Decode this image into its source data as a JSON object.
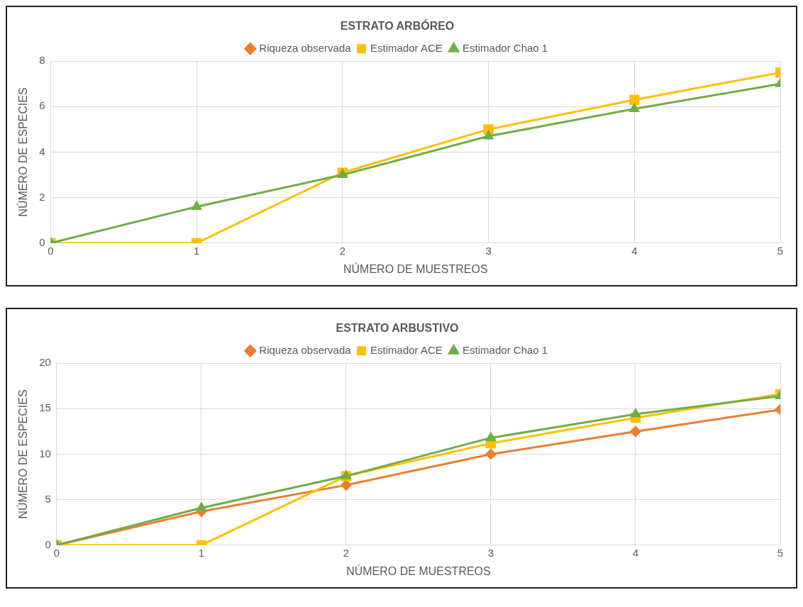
{
  "chart_data": [
    {
      "type": "line",
      "title": "ESTRATO ARBÓREO",
      "xlabel": "NÚMERO DE MUESTREOS",
      "ylabel": "NÚMERO DE ESPECIES",
      "x": [
        0,
        1,
        2,
        3,
        4,
        5
      ],
      "xlim": [
        0,
        5
      ],
      "xticks": [
        0,
        1,
        2,
        3,
        4,
        5
      ],
      "ylim": [
        0,
        8
      ],
      "yticks": [
        0,
        2,
        4,
        6,
        8
      ],
      "grid": true,
      "legend": "top",
      "line_style": "solid",
      "series": [
        {
          "name": "Riqueza observada",
          "color": "#ed7d31",
          "marker": "diamond",
          "values": [
            null,
            null,
            null,
            null,
            null,
            null
          ]
        },
        {
          "name": "Estimador ACE",
          "color": "#ffc000",
          "marker": "square",
          "values": [
            0,
            0,
            3.1,
            5,
            6.3,
            7.5
          ]
        },
        {
          "name": "Estimador Chao 1",
          "color": "#70ad47",
          "marker": "triangle",
          "values": [
            0,
            1.6,
            3,
            4.7,
            5.9,
            7
          ]
        }
      ]
    },
    {
      "type": "line",
      "title": "ESTRATO ARBUSTIVO",
      "xlabel": "NÚMERO DE MUESTREOS",
      "ylabel": "NÚMERO DE ESPECIES",
      "x": [
        0,
        1,
        2,
        3,
        4,
        5
      ],
      "xlim": [
        0,
        5
      ],
      "xticks": [
        0,
        1,
        2,
        3,
        4,
        5
      ],
      "ylim": [
        0,
        20
      ],
      "yticks": [
        0,
        5,
        10,
        15,
        20
      ],
      "grid": true,
      "legend": "top",
      "line_style": "solid",
      "series": [
        {
          "name": "Riqueza observada",
          "color": "#ed7d31",
          "marker": "diamond",
          "values": [
            0,
            3.7,
            6.6,
            10,
            12.5,
            14.9
          ]
        },
        {
          "name": "Estimador ACE",
          "color": "#ffc000",
          "marker": "square",
          "values": [
            0,
            0,
            7.6,
            11.2,
            14,
            16.6
          ]
        },
        {
          "name": "Estimador Chao 1",
          "color": "#70ad47",
          "marker": "triangle",
          "values": [
            0,
            4.1,
            7.6,
            11.8,
            14.4,
            16.4
          ]
        }
      ]
    }
  ]
}
